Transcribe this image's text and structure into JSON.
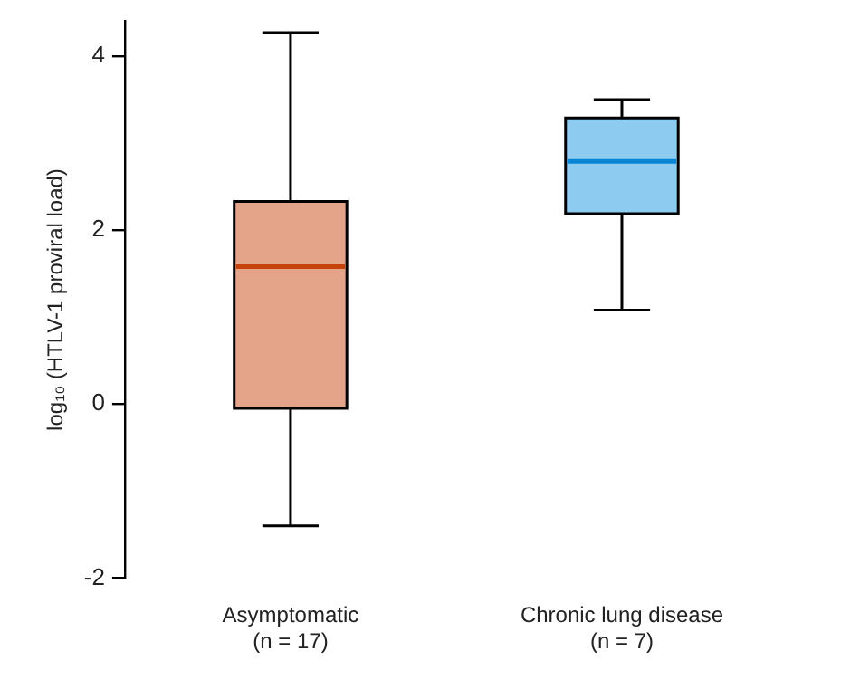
{
  "chart_data": {
    "type": "box",
    "ylabel": "log₁₀ (HTLV-1 proviral load)",
    "categories": [
      "Asymptomatic\n(n = 17)",
      "Chronic lung disease\n(n = 7)"
    ],
    "boxes": [
      {
        "low": -1.4,
        "q1": -0.05,
        "median": 1.58,
        "q3": 2.33,
        "high": 4.27
      },
      {
        "low": 1.08,
        "q1": 2.19,
        "median": 2.79,
        "q3": 3.29,
        "high": 3.5
      }
    ],
    "colors": [
      "#e3a48a",
      "#8ecbf0"
    ],
    "ylim": [
      -2,
      4.4
    ],
    "yticks": [
      -2,
      0,
      2,
      4
    ],
    "grid": false
  }
}
